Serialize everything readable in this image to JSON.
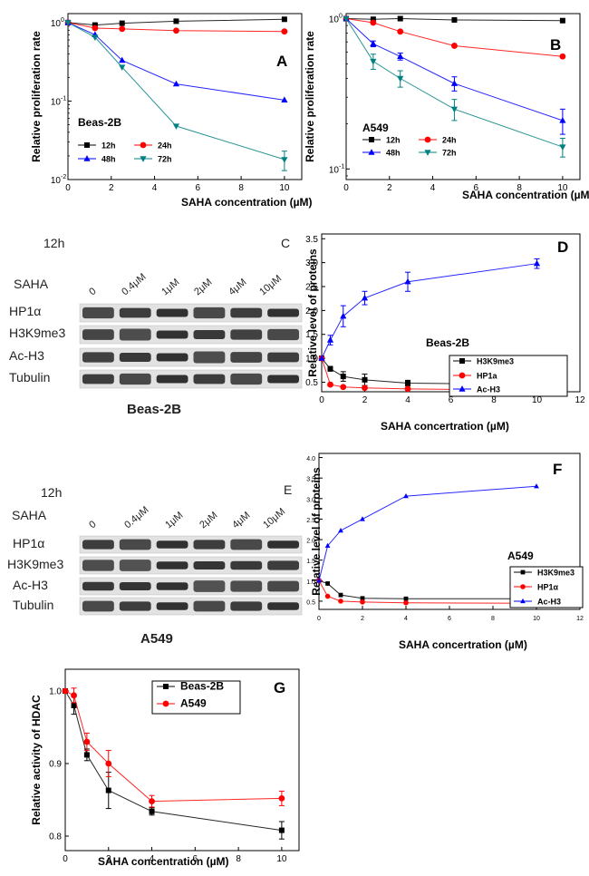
{
  "chart_data": [
    {
      "panel": "A",
      "type": "line",
      "yscale": "log",
      "legend_title": "Beas-2B",
      "xlabel": "SAHA concentration (µM)",
      "ylabel": "Relative proliferation rate",
      "xlim": [
        0,
        10.8
      ],
      "ylim": [
        0.01,
        1.3
      ],
      "x_ticks": [
        0,
        2,
        4,
        6,
        8,
        10
      ],
      "y_ticks": [
        {
          "v": 0.01,
          "t": "10"
        },
        {
          "v": 0.1,
          "t": "10"
        },
        {
          "v": 1,
          "t": "10"
        }
      ],
      "y_tick_exponents": [
        "-2",
        "-1",
        "0"
      ],
      "series": [
        {
          "name": "12h",
          "color": "#000000",
          "marker": "square",
          "x": [
            0,
            1.25,
            2.5,
            5,
            10
          ],
          "y": [
            1.0,
            0.93,
            0.98,
            1.04,
            1.1
          ]
        },
        {
          "name": "24h",
          "color": "#ff0000",
          "marker": "circle",
          "x": [
            0,
            1.25,
            2.5,
            5,
            10
          ],
          "y": [
            1.0,
            0.85,
            0.83,
            0.79,
            0.77
          ]
        },
        {
          "name": "48h",
          "color": "#0000ff",
          "marker": "triangle-up",
          "x": [
            0,
            1.25,
            2.5,
            5,
            10
          ],
          "y": [
            1.0,
            0.7,
            0.33,
            0.165,
            0.103
          ]
        },
        {
          "name": "72h",
          "color": "#008080",
          "marker": "triangle-down",
          "x": [
            0,
            1.25,
            2.5,
            5,
            10
          ],
          "y": [
            1.0,
            0.65,
            0.27,
            0.048,
            0.018
          ],
          "err": [
            0,
            0,
            0,
            0,
            0.005
          ]
        }
      ]
    },
    {
      "panel": "B",
      "type": "line",
      "yscale": "log",
      "legend_title": "A549",
      "xlabel": "SAHA concentration (µM)",
      "ylabel": "Relative proliferation rate",
      "xlim": [
        0,
        10.8
      ],
      "ylim": [
        0.085,
        1.08
      ],
      "x_ticks": [
        0,
        2,
        4,
        6,
        8,
        10
      ],
      "y_ticks": [
        {
          "v": 0.1,
          "t": "10"
        },
        {
          "v": 1,
          "t": "10"
        }
      ],
      "y_tick_exponents": [
        "-1",
        "0"
      ],
      "series": [
        {
          "name": "12h",
          "color": "#000000",
          "marker": "square",
          "x": [
            0,
            1.25,
            2.5,
            5,
            10
          ],
          "y": [
            1.0,
            0.99,
            1.0,
            0.98,
            0.97
          ]
        },
        {
          "name": "24h",
          "color": "#ff0000",
          "marker": "circle",
          "x": [
            0,
            1.25,
            2.5,
            5,
            10
          ],
          "y": [
            1.0,
            0.94,
            0.82,
            0.66,
            0.56
          ]
        },
        {
          "name": "48h",
          "color": "#0000ff",
          "marker": "triangle-up",
          "x": [
            0,
            1.25,
            2.5,
            5,
            10
          ],
          "y": [
            1.0,
            0.68,
            0.56,
            0.37,
            0.21
          ],
          "err": [
            0,
            0.03,
            0.03,
            0.04,
            0.04
          ]
        },
        {
          "name": "72h",
          "color": "#008080",
          "marker": "triangle-down",
          "x": [
            0,
            1.25,
            2.5,
            5,
            10
          ],
          "y": [
            1.0,
            0.52,
            0.4,
            0.25,
            0.14
          ],
          "err": [
            0,
            0.06,
            0.05,
            0.04,
            0.02
          ]
        }
      ]
    },
    {
      "panel": "D",
      "type": "line",
      "legend_title": "Beas-2B",
      "xlabel": "SAHA concertration (µM)",
      "ylabel": "Relative level of proteins",
      "xlim": [
        0,
        12
      ],
      "ylim": [
        0.3,
        3.6
      ],
      "x_ticks": [
        0,
        2,
        4,
        6,
        8,
        10,
        12
      ],
      "y_ticks": [
        0.5,
        1.0,
        1.5,
        2.0,
        2.5,
        3.0,
        3.5
      ],
      "series": [
        {
          "name": "H3K9me3",
          "color": "#000000",
          "marker": "square",
          "x": [
            0,
            0.4,
            1,
            2,
            4,
            10
          ],
          "y": [
            1.0,
            0.78,
            0.62,
            0.55,
            0.48,
            0.45
          ],
          "err": [
            0,
            0.05,
            0.1,
            0.12,
            0.06,
            0.08
          ]
        },
        {
          "name": "HP1a",
          "color": "#ff0000",
          "marker": "circle",
          "x": [
            0,
            0.4,
            1,
            2,
            4,
            10
          ],
          "y": [
            1.0,
            0.45,
            0.4,
            0.38,
            0.36,
            0.33
          ]
        },
        {
          "name": "Ac-H3",
          "color": "#0000ff",
          "marker": "triangle-up",
          "x": [
            0,
            0.4,
            1,
            2,
            4,
            10
          ],
          "y": [
            1.0,
            1.38,
            1.88,
            2.26,
            2.6,
            2.98
          ],
          "err": [
            0,
            0.1,
            0.22,
            0.14,
            0.2,
            0.1
          ]
        }
      ]
    },
    {
      "panel": "F",
      "type": "line",
      "legend_title": "A549",
      "xlabel": "SAHA concertration (µM)",
      "ylabel": "Relative level of proteins",
      "xlim": [
        0,
        12
      ],
      "ylim": [
        0.3,
        4.1
      ],
      "x_ticks": [
        0,
        2,
        4,
        6,
        8,
        10,
        12
      ],
      "y_ticks": [
        0.5,
        1.0,
        1.5,
        2.0,
        2.5,
        3.0,
        3.5,
        4.0
      ],
      "series": [
        {
          "name": "H3K9me3",
          "color": "#000000",
          "marker": "square",
          "x": [
            0,
            0.4,
            1,
            2,
            4,
            10
          ],
          "y": [
            1.0,
            0.93,
            0.65,
            0.57,
            0.56,
            0.56
          ]
        },
        {
          "name": "HP1α",
          "color": "#ff0000",
          "marker": "circle",
          "x": [
            0,
            0.4,
            1,
            2,
            4,
            10
          ],
          "y": [
            1.0,
            0.62,
            0.5,
            0.48,
            0.46,
            0.45
          ]
        },
        {
          "name": "Ac-H3",
          "color": "#0000ff",
          "marker": "triangle-up",
          "x": [
            0,
            0.4,
            1,
            2,
            4,
            10
          ],
          "y": [
            1.0,
            1.85,
            2.22,
            2.5,
            3.06,
            3.3
          ]
        }
      ]
    },
    {
      "panel": "G",
      "type": "line",
      "xlabel": "SAHA concentration (µM)",
      "ylabel": "Relative activity of HDAC",
      "xlim": [
        0,
        10.8
      ],
      "ylim": [
        0.78,
        1.03
      ],
      "x_ticks": [
        0,
        2,
        4,
        6,
        8,
        10
      ],
      "y_ticks": [
        0.8,
        0.9,
        1.0
      ],
      "series": [
        {
          "name": "Beas-2B",
          "color": "#000000",
          "marker": "square",
          "x": [
            0,
            0.4,
            1,
            2,
            4,
            10
          ],
          "y": [
            1.0,
            0.98,
            0.912,
            0.863,
            0.834,
            0.808
          ],
          "err": [
            0,
            0.012,
            0.008,
            0.025,
            0.005,
            0.012
          ]
        },
        {
          "name": "A549",
          "color": "#ff0000",
          "marker": "circle",
          "x": [
            0,
            0.4,
            1,
            2,
            4,
            10
          ],
          "y": [
            1.0,
            0.994,
            0.93,
            0.9,
            0.848,
            0.852
          ],
          "err": [
            0,
            0.01,
            0.012,
            0.018,
            0.008,
            0.01
          ]
        }
      ]
    }
  ],
  "blots": {
    "beas": {
      "letter": "C",
      "time": "12h",
      "treatment": "SAHA",
      "lanes": [
        "0",
        "0.4μM",
        "1μM",
        "2μM",
        "4μM",
        "10μM"
      ],
      "rows": [
        "HP1α",
        "H3K9me3",
        "Ac-H3",
        "Tubulin"
      ],
      "cell_line": "Beas-2B"
    },
    "a549": {
      "letter": "E",
      "time": "12h",
      "treatment": "SAHA",
      "lanes": [
        "0",
        "0.4μM",
        "1μM",
        "2μM",
        "4μM",
        "10μM"
      ],
      "rows": [
        "HP1α",
        "H3K9me3",
        "Ac-H3",
        "Tubulin"
      ],
      "cell_line": "A549"
    }
  }
}
